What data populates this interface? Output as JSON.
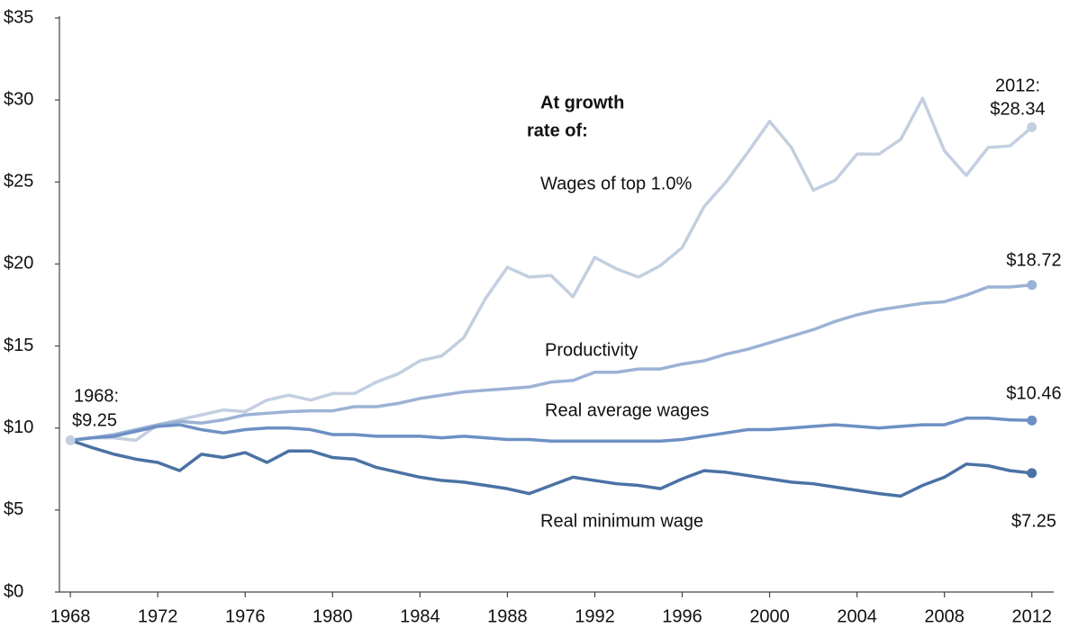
{
  "chart_data": {
    "type": "line",
    "annotations": [
      "At growth",
      "rate of:",
      "1968:",
      "$9.25",
      "2012:",
      "$28.34",
      "$18.72",
      "$10.46",
      "$7.25"
    ],
    "x": [
      1968,
      1969,
      1970,
      1971,
      1972,
      1973,
      1974,
      1975,
      1976,
      1977,
      1978,
      1979,
      1980,
      1981,
      1982,
      1983,
      1984,
      1985,
      1986,
      1987,
      1988,
      1989,
      1990,
      1991,
      1992,
      1993,
      1994,
      1995,
      1996,
      1997,
      1998,
      1999,
      2000,
      2001,
      2002,
      2003,
      2004,
      2005,
      2006,
      2007,
      2008,
      2009,
      2010,
      2011,
      2012
    ],
    "series": [
      {
        "name": "Wages of top 1.0%",
        "color": "#c3cfe0",
        "values": [
          9.25,
          9.4,
          9.4,
          9.25,
          10.2,
          10.5,
          10.8,
          11.1,
          11.0,
          11.7,
          12.0,
          11.7,
          12.1,
          12.1,
          12.8,
          13.3,
          14.1,
          14.4,
          15.5,
          17.9,
          19.8,
          19.2,
          19.3,
          18.0,
          20.4,
          19.7,
          19.2,
          19.9,
          21.0,
          23.5,
          25.0,
          26.8,
          28.7,
          27.1,
          24.5,
          25.1,
          26.7,
          26.7,
          27.6,
          30.1,
          26.9,
          25.4,
          27.1,
          27.2,
          28.34
        ]
      },
      {
        "name": "Productivity",
        "color": "#9cb2d5",
        "values": [
          9.25,
          9.4,
          9.6,
          9.9,
          10.2,
          10.4,
          10.3,
          10.5,
          10.8,
          10.9,
          11.0,
          11.05,
          11.05,
          11.3,
          11.3,
          11.5,
          11.8,
          12.0,
          12.2,
          12.3,
          12.4,
          12.5,
          12.8,
          12.9,
          13.4,
          13.4,
          13.6,
          13.6,
          13.9,
          14.1,
          14.5,
          14.8,
          15.2,
          15.6,
          16.0,
          16.5,
          16.9,
          17.2,
          17.4,
          17.6,
          17.7,
          18.1,
          18.6,
          18.6,
          18.72
        ]
      },
      {
        "name": "Real average wages",
        "color": "#6d90c4",
        "values": [
          9.25,
          9.4,
          9.5,
          9.8,
          10.1,
          10.2,
          9.9,
          9.7,
          9.9,
          10.0,
          10.0,
          9.9,
          9.6,
          9.6,
          9.5,
          9.5,
          9.5,
          9.4,
          9.5,
          9.4,
          9.3,
          9.3,
          9.2,
          9.2,
          9.2,
          9.2,
          9.2,
          9.2,
          9.3,
          9.5,
          9.7,
          9.9,
          9.9,
          10.0,
          10.1,
          10.2,
          10.1,
          10.0,
          10.1,
          10.2,
          10.2,
          10.6,
          10.6,
          10.5,
          10.46
        ]
      },
      {
        "name": "Real minimum wage",
        "color": "#4a72a4",
        "values": [
          9.25,
          8.8,
          8.4,
          8.1,
          7.9,
          7.4,
          8.4,
          8.2,
          8.5,
          7.9,
          8.6,
          8.6,
          8.2,
          8.1,
          7.6,
          7.3,
          7.0,
          6.8,
          6.7,
          6.5,
          6.3,
          6.0,
          6.5,
          7.0,
          6.8,
          6.6,
          6.5,
          6.3,
          6.9,
          7.4,
          7.3,
          7.1,
          6.9,
          6.7,
          6.6,
          6.4,
          6.2,
          6.0,
          5.85,
          6.5,
          7.0,
          7.8,
          7.7,
          7.4,
          7.25
        ]
      }
    ],
    "xlim": [
      1967.5,
      2013
    ],
    "xticks": [
      1968,
      1972,
      1976,
      1980,
      1984,
      1988,
      1992,
      1996,
      2000,
      2004,
      2008,
      2012
    ],
    "ylim": [
      0,
      35
    ],
    "yticks": [
      {
        "value": 0,
        "label": "$0"
      },
      {
        "value": 5,
        "label": "$5"
      },
      {
        "value": 10,
        "label": "$10"
      },
      {
        "value": 15,
        "label": "$15"
      },
      {
        "value": 20,
        "label": "$20"
      },
      {
        "value": 25,
        "label": "$25"
      },
      {
        "value": 30,
        "label": "$30"
      },
      {
        "value": 35,
        "label": "$35"
      }
    ],
    "grid": false
  }
}
